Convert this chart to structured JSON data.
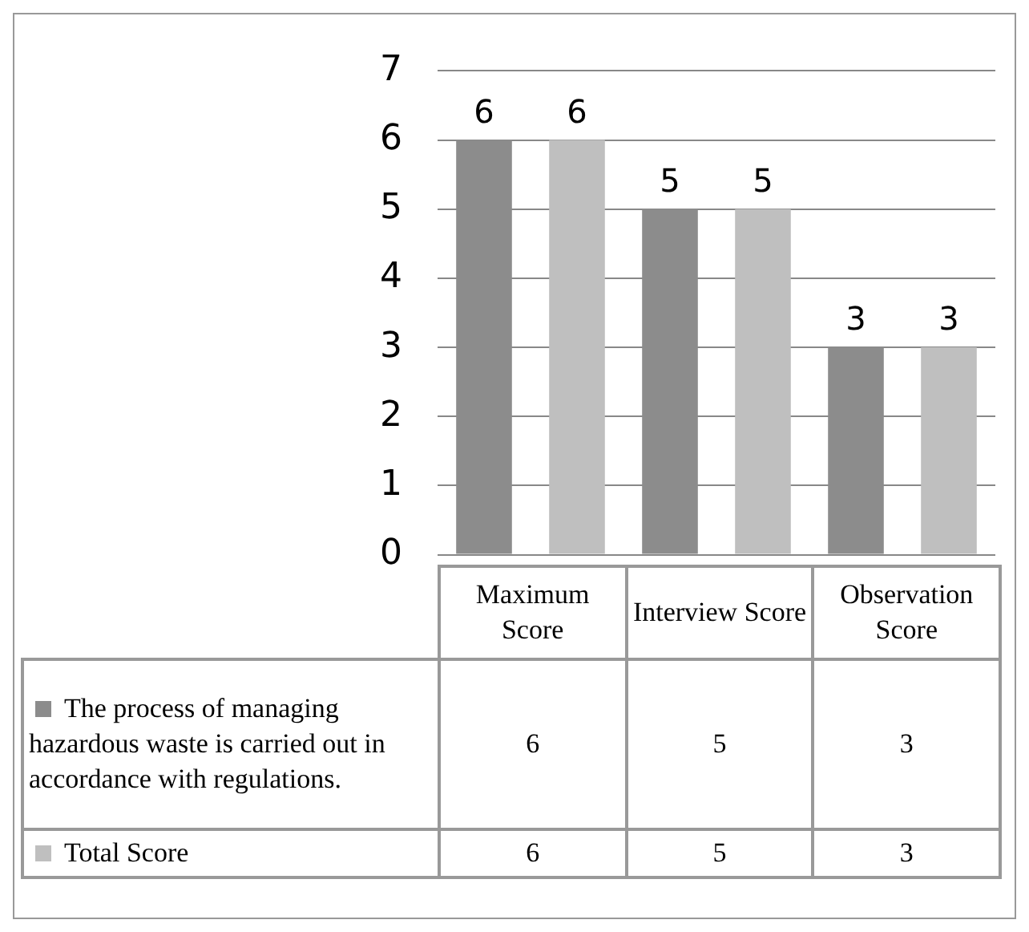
{
  "chart_data": {
    "type": "bar",
    "categories": [
      "Maximum Score",
      "Interview Score",
      "Observation Score"
    ],
    "series": [
      {
        "name": "The process of managing hazardous waste is carried out in accordance with regulations.",
        "color": "#8c8c8c",
        "values": [
          6,
          5,
          3
        ]
      },
      {
        "name": "Total Score",
        "color": "#bfbfbf",
        "values": [
          6,
          5,
          3
        ]
      }
    ],
    "ylim": [
      0,
      7
    ],
    "yticks": [
      0,
      1,
      2,
      3,
      4,
      5,
      6,
      7
    ],
    "grid": "y",
    "legend": "bottom",
    "data_labels": true,
    "annotations": [
      "6",
      "5",
      "3",
      "6",
      "5",
      "3"
    ]
  }
}
